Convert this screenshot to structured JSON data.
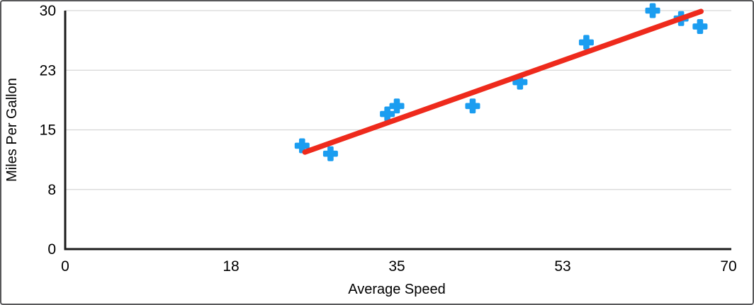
{
  "chart_data": {
    "type": "scatter",
    "title": "",
    "xlabel": "Average Speed",
    "ylabel": "Miles Per Gallon",
    "xlim": [
      0,
      70
    ],
    "ylim": [
      0,
      30
    ],
    "grid": "horizontal-only",
    "legend": "none",
    "x_ticks": [
      {
        "label": "0",
        "value": 0
      },
      {
        "label": "18",
        "value": 17.5
      },
      {
        "label": "35",
        "value": 35
      },
      {
        "label": "53",
        "value": 52.5
      },
      {
        "label": "70",
        "value": 70
      }
    ],
    "y_ticks": [
      {
        "label": "0",
        "value": 0
      },
      {
        "label": "8",
        "value": 7.5
      },
      {
        "label": "15",
        "value": 15
      },
      {
        "label": "23",
        "value": 22.5
      },
      {
        "label": "30",
        "value": 30
      }
    ],
    "series": [
      {
        "name": "Miles Per Gallon",
        "marker": "plus",
        "points": [
          {
            "x": 25,
            "y": 13
          },
          {
            "x": 28,
            "y": 12
          },
          {
            "x": 34,
            "y": 17
          },
          {
            "x": 35,
            "y": 18
          },
          {
            "x": 43,
            "y": 18
          },
          {
            "x": 48,
            "y": 21
          },
          {
            "x": 55,
            "y": 26
          },
          {
            "x": 62,
            "y": 30
          },
          {
            "x": 65,
            "y": 29
          },
          {
            "x": 67,
            "y": 28
          }
        ]
      }
    ],
    "trendline": {
      "x1": 25.3,
      "y1": 12.2,
      "x2": 67.1,
      "y2": 29.9
    }
  },
  "colors": {
    "point_blue": "#1b9df0",
    "trendline_red": "#ee2a1c",
    "gridline_gray": "#d6d6d6",
    "axis_dark": "#1c1c1c",
    "text_black": "#000000",
    "frame_border": "#58585a",
    "background": "#ffffff"
  }
}
